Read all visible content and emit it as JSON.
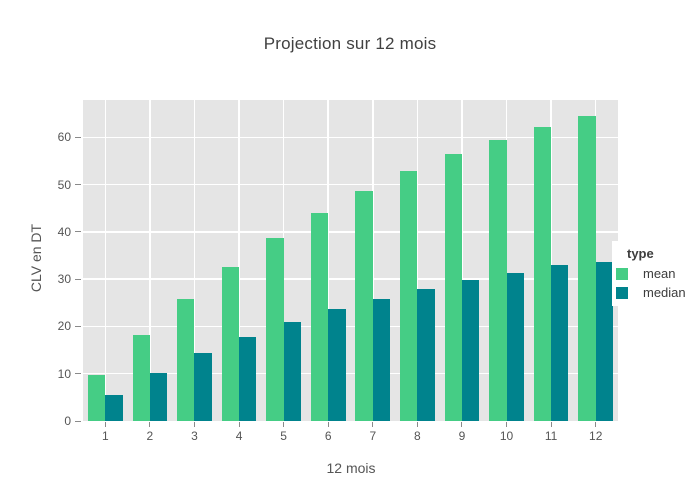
{
  "chart_data": {
    "type": "bar",
    "title": "Projection sur 12 mois",
    "xlabel": "12 mois",
    "ylabel": "CLV en DT",
    "legend_title": "type",
    "legend_position": "right",
    "grid": true,
    "plot_bg_color": "#e5e5e5",
    "grid_color": "#ffffff",
    "categories": [
      1,
      2,
      3,
      4,
      5,
      6,
      7,
      8,
      9,
      10,
      11,
      12
    ],
    "series": [
      {
        "name": "mean",
        "color": "#45cd85",
        "values": [
          9.7,
          18.3,
          25.8,
          32.6,
          38.7,
          44.1,
          48.6,
          52.8,
          56.4,
          59.4,
          62.2,
          64.6
        ]
      },
      {
        "name": "median",
        "color": "#00838d",
        "values": [
          5.4,
          10.2,
          14.3,
          17.8,
          20.9,
          23.6,
          25.9,
          28.0,
          29.9,
          31.3,
          32.9,
          33.6
        ]
      }
    ],
    "yticks": [
      0,
      10,
      20,
      30,
      40,
      50,
      60
    ],
    "ylim": [
      0,
      67.9
    ]
  }
}
